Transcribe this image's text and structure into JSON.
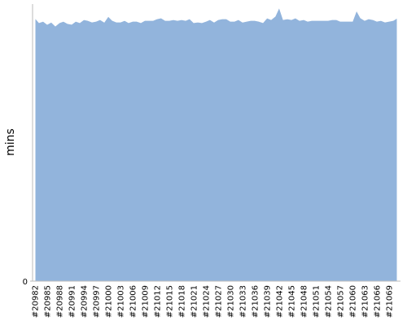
{
  "chart_data": {
    "type": "area",
    "y_label": "mins",
    "color": "#92b4dc",
    "categories": [
      "#20982",
      null,
      null,
      "#20985",
      null,
      null,
      "#20988",
      null,
      null,
      "#20991",
      null,
      null,
      "#20994",
      null,
      null,
      "#20997",
      null,
      null,
      "#21000",
      null,
      null,
      "#21003",
      null,
      null,
      "#21006",
      null,
      null,
      "#21009",
      null,
      null,
      "#21012",
      null,
      null,
      "#21015",
      null,
      null,
      "#21018",
      null,
      null,
      "#21021",
      null,
      null,
      "#21024",
      null,
      null,
      "#21027",
      null,
      null,
      "#21030",
      null,
      null,
      "#21033",
      null,
      null,
      "#21036",
      null,
      null,
      "#21039",
      null,
      null,
      "#21042",
      null,
      null,
      "#21045",
      null,
      null,
      "#21048",
      null,
      null,
      "#21051",
      null,
      null,
      "#21054",
      null,
      null,
      "#21057",
      null,
      null,
      "#21060",
      null,
      null,
      "#21063",
      null,
      null,
      "#21066",
      null,
      null,
      "#21069",
      null,
      null
    ],
    "values": [
      95.0,
      93.3,
      93.8,
      92.7,
      93.5,
      92.1,
      93.3,
      93.8,
      93.0,
      92.7,
      93.8,
      93.3,
      94.4,
      94.1,
      93.5,
      93.8,
      94.4,
      93.5,
      95.6,
      94.1,
      93.5,
      93.5,
      94.1,
      93.3,
      93.8,
      93.8,
      93.3,
      94.1,
      94.1,
      94.1,
      94.7,
      95.0,
      94.1,
      94.1,
      94.4,
      94.1,
      94.4,
      94.1,
      94.7,
      93.3,
      93.5,
      93.3,
      93.8,
      94.4,
      93.5,
      94.4,
      94.7,
      94.7,
      93.8,
      93.8,
      94.4,
      93.5,
      93.8,
      94.1,
      94.1,
      93.8,
      93.3,
      95.0,
      94.4,
      95.6,
      98.8,
      94.4,
      94.7,
      94.4,
      95.0,
      94.1,
      94.4,
      93.8,
      94.1,
      94.1,
      94.1,
      94.1,
      94.1,
      94.4,
      94.4,
      93.8,
      93.8,
      93.8,
      93.8,
      97.7,
      95.0,
      94.1,
      94.7,
      94.4,
      93.8,
      94.1,
      93.5,
      93.8,
      94.1,
      95.0
    ],
    "ylim": [
      0,
      100
    ],
    "yticks": [
      0
    ],
    "grid": false
  }
}
